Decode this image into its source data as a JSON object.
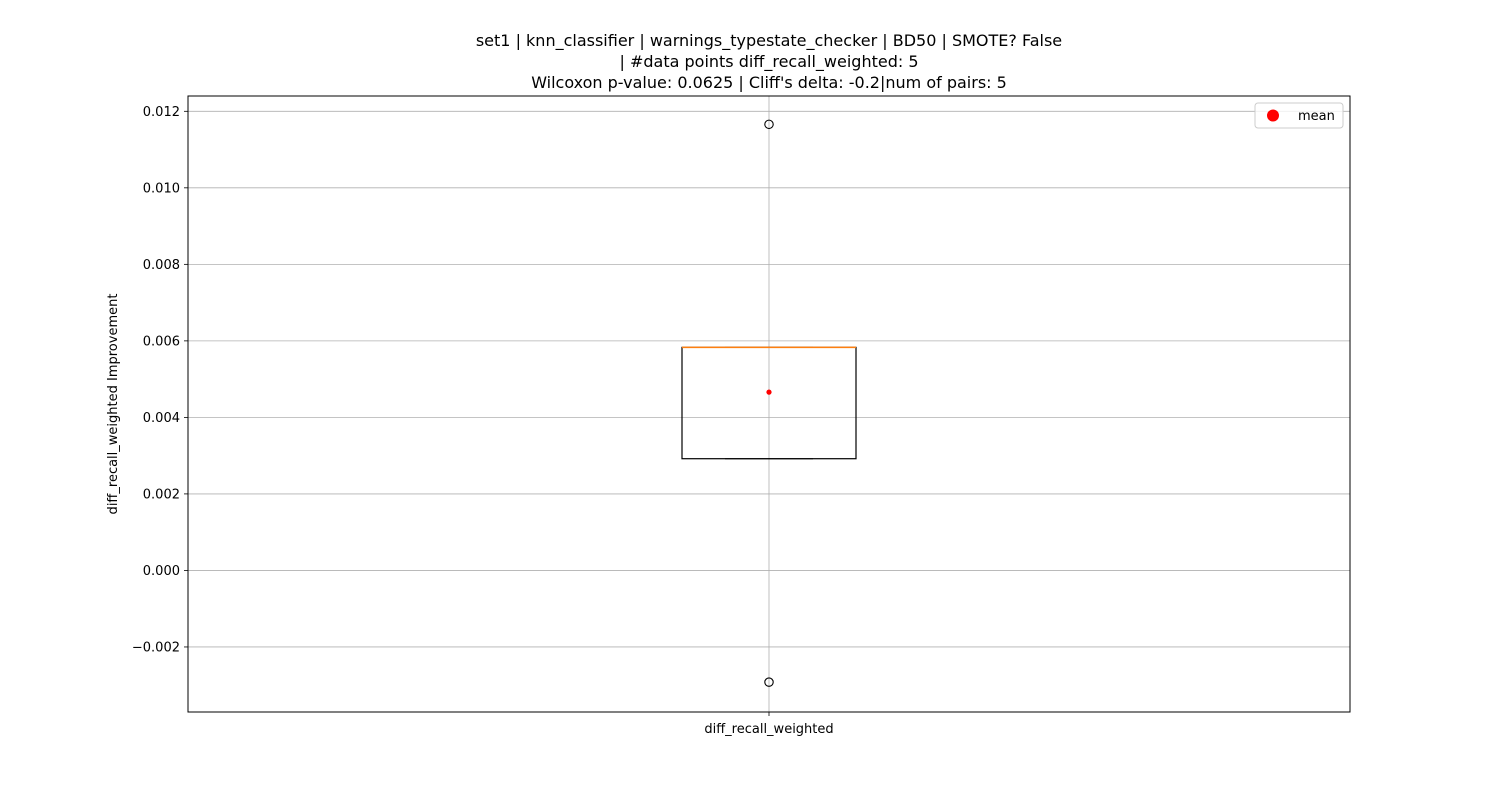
{
  "chart_data": {
    "type": "box",
    "title_lines": [
      "set1 | knn_classifier | warnings_typestate_checker | BD50 | SMOTE? False",
      "| #data points diff_recall_weighted: 5",
      "Wilcoxon p-value: 0.0625 | Cliff's delta: -0.2|num of pairs: 5"
    ],
    "xlabel": "",
    "ylabel": "diff_recall_weighted Improvement",
    "categories": [
      "diff_recall_weighted"
    ],
    "ylim": [
      -0.0037,
      0.0124
    ],
    "yticks": [
      -0.002,
      0.0,
      0.002,
      0.004,
      0.006,
      0.008,
      0.01,
      0.012
    ],
    "ytick_labels": [
      "−0.002",
      "0.000",
      "0.002",
      "0.004",
      "0.006",
      "0.008",
      "0.010",
      "0.012"
    ],
    "grid": true,
    "legend": {
      "position": "top-right",
      "entries": [
        {
          "label": "mean",
          "color": "#ff0000"
        }
      ]
    },
    "boxes": [
      {
        "category": "diff_recall_weighted",
        "q1": 0.00292,
        "median": 0.00583,
        "q3": 0.00583,
        "whisker_low": 0.00292,
        "whisker_high": 0.00583,
        "mean": 0.00466,
        "outliers": [
          0.01166,
          -0.00292
        ]
      }
    ],
    "colors": {
      "median": "#ff7f0e",
      "mean": "#ff0000",
      "box": "#000000",
      "grid": "#b0b0b0"
    }
  }
}
